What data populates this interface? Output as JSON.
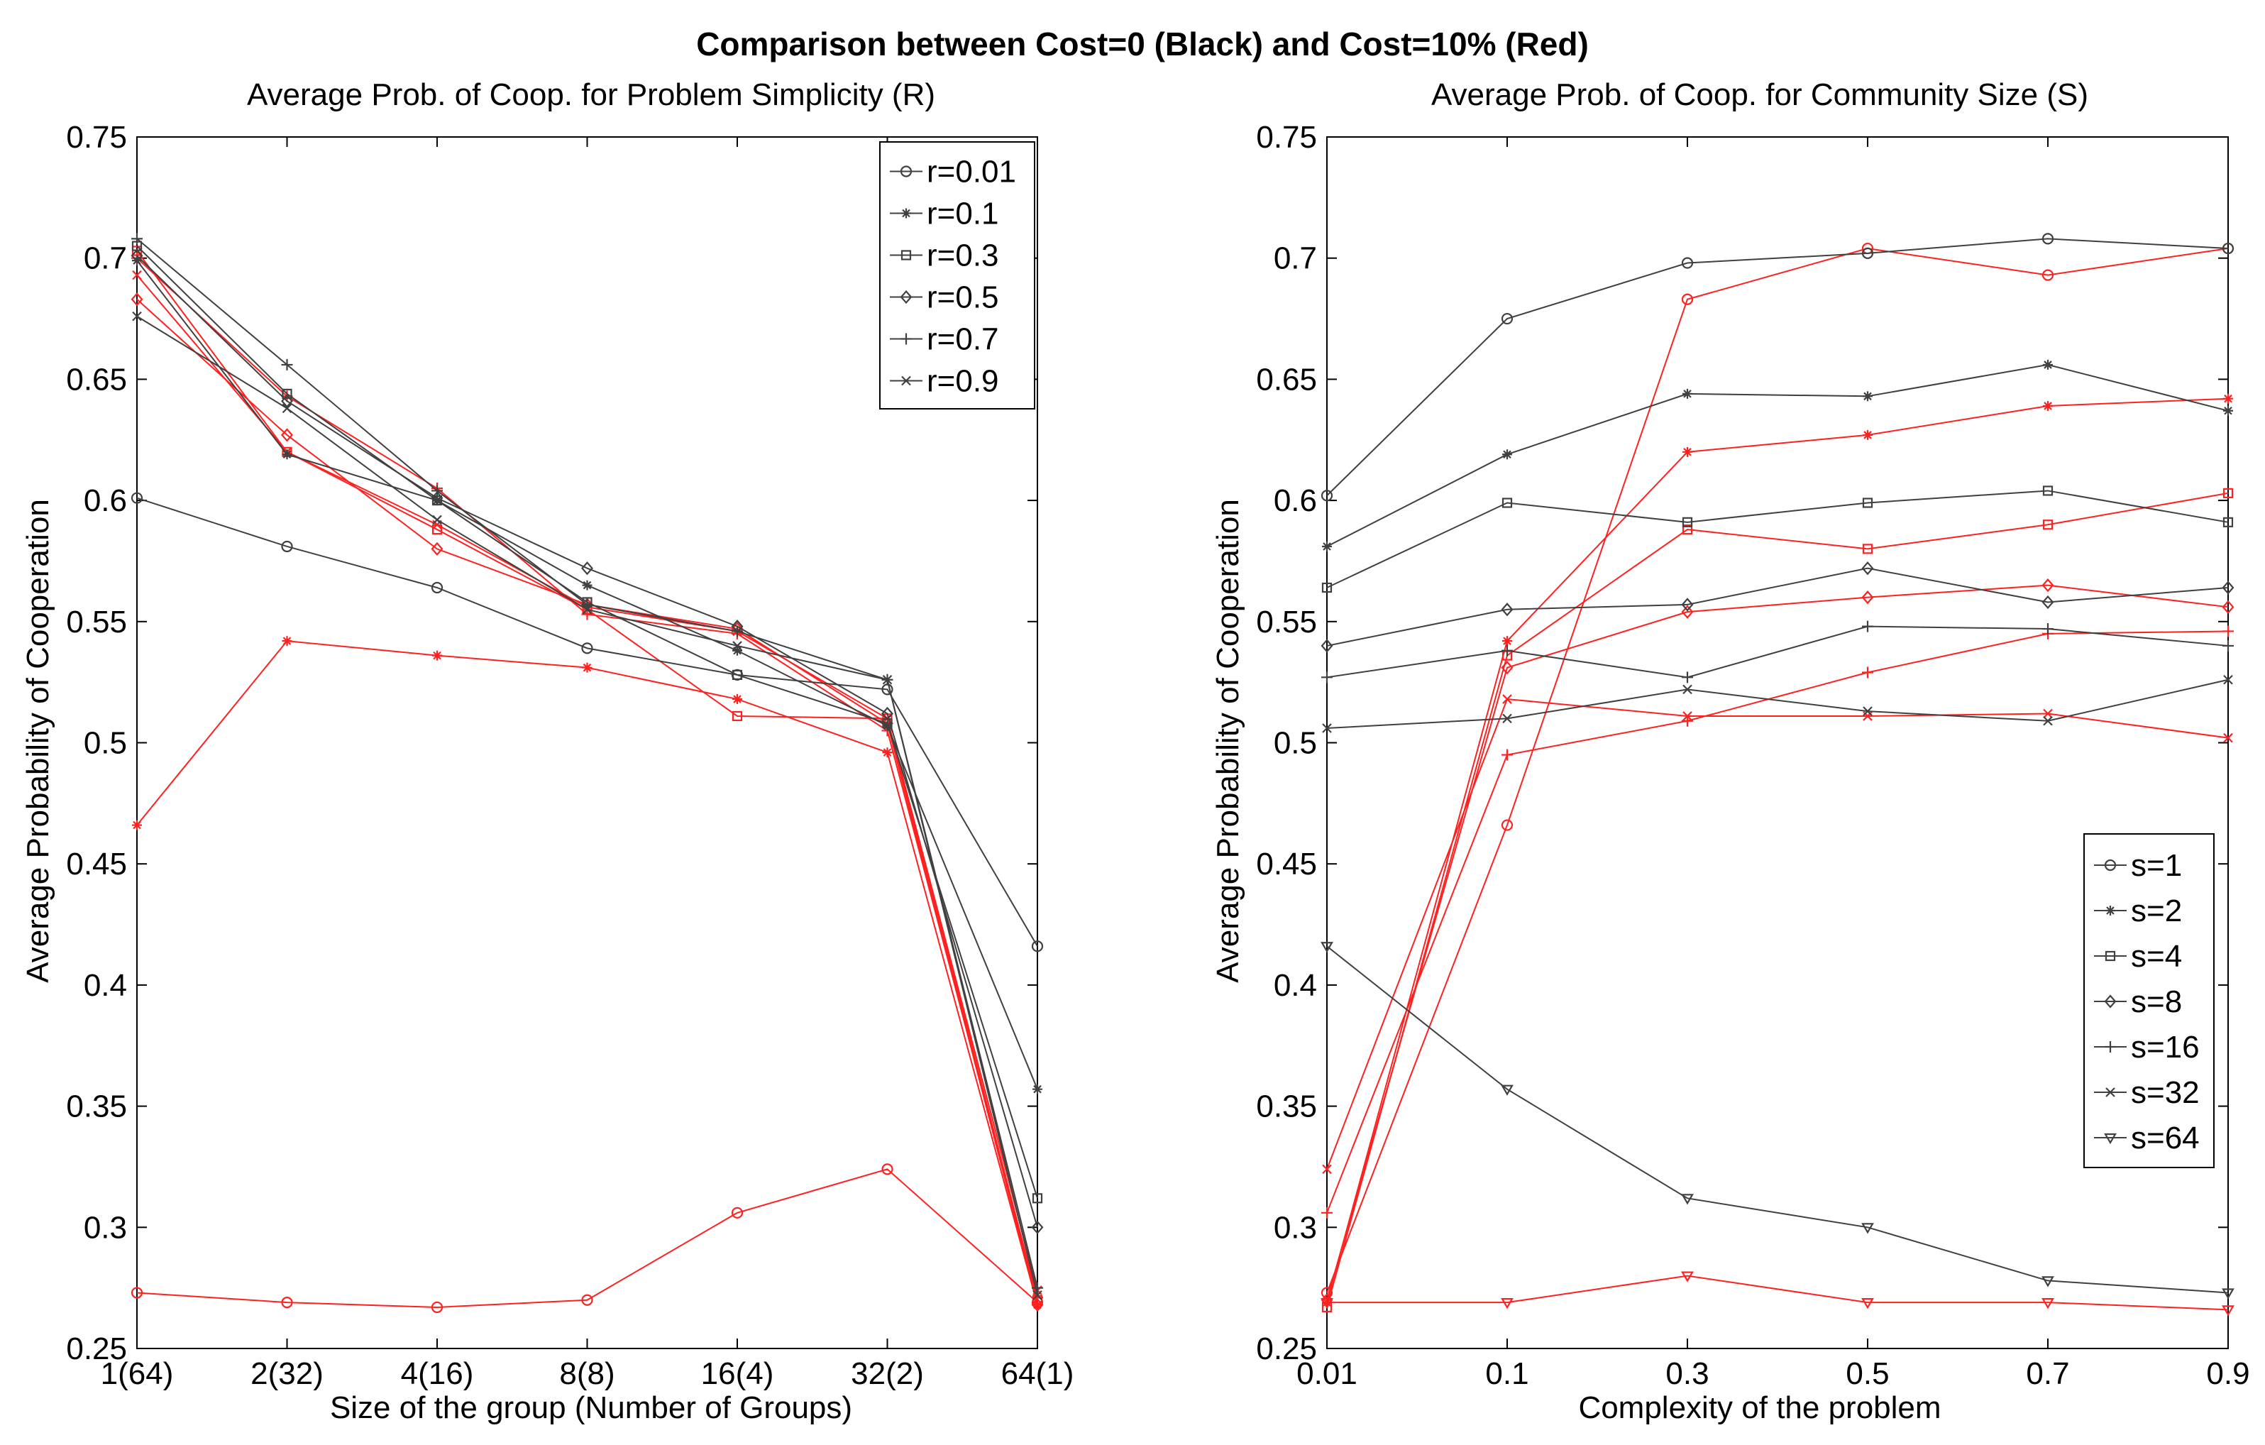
{
  "figure_title": "Comparison between Cost=0 (Black) and Cost=10% (Red)",
  "colors": {
    "black_series": "#404040",
    "red_series": "#ff2020",
    "axes": "#000000",
    "background": "#ffffff"
  },
  "chart_data": [
    {
      "type": "line",
      "title": "Average Prob. of Coop. for Problem Simplicity (R)",
      "xlabel": "Size of the group (Number of Groups)",
      "ylabel": "Average Probability of Cooperation",
      "categories": [
        "1(64)",
        "2(32)",
        "4(16)",
        "8(8)",
        "16(4)",
        "32(2)",
        "64(1)"
      ],
      "ylim": [
        0.25,
        0.75
      ],
      "yticks": [
        "0.25",
        "0.3",
        "0.35",
        "0.4",
        "0.45",
        "0.5",
        "0.55",
        "0.6",
        "0.65",
        "0.7",
        "0.75"
      ],
      "legend_position": "top-right",
      "series": [
        {
          "name": "r=0.01",
          "marker": "circle",
          "cost": "0",
          "values": [
            0.601,
            0.581,
            0.564,
            0.539,
            0.528,
            0.522,
            0.416
          ]
        },
        {
          "name": "r=0.1",
          "marker": "star",
          "cost": "0",
          "values": [
            0.699,
            0.619,
            0.6,
            0.565,
            0.538,
            0.507,
            0.357
          ]
        },
        {
          "name": "r=0.3",
          "marker": "square",
          "cost": "0",
          "values": [
            0.705,
            0.644,
            0.6,
            0.558,
            0.528,
            0.508,
            0.312
          ]
        },
        {
          "name": "r=0.5",
          "marker": "diamond",
          "cost": "0",
          "values": [
            0.701,
            0.641,
            0.601,
            0.572,
            0.548,
            0.512,
            0.3
          ]
        },
        {
          "name": "r=0.7",
          "marker": "plus",
          "cost": "0",
          "values": [
            0.708,
            0.656,
            0.604,
            0.557,
            0.546,
            0.526,
            0.275
          ]
        },
        {
          "name": "r=0.9",
          "marker": "x",
          "cost": "0",
          "values": [
            0.676,
            0.638,
            0.592,
            0.555,
            0.54,
            0.526,
            0.272
          ]
        },
        {
          "name": "r=0.01",
          "marker": "circle",
          "cost": "10%",
          "values": [
            0.273,
            0.269,
            0.267,
            0.27,
            0.306,
            0.324,
            0.269
          ]
        },
        {
          "name": "r=0.1",
          "marker": "star",
          "cost": "10%",
          "values": [
            0.466,
            0.542,
            0.536,
            0.531,
            0.518,
            0.496,
            0.268
          ]
        },
        {
          "name": "r=0.3",
          "marker": "square",
          "cost": "10%",
          "values": [
            0.703,
            0.62,
            0.588,
            0.555,
            0.511,
            0.51,
            0.27
          ]
        },
        {
          "name": "r=0.5",
          "marker": "diamond",
          "cost": "10%",
          "values": [
            0.683,
            0.627,
            0.58,
            0.557,
            0.547,
            0.508,
            0.268
          ]
        },
        {
          "name": "r=0.7",
          "marker": "plus",
          "cost": "10%",
          "values": [
            0.7,
            0.643,
            0.605,
            0.553,
            0.545,
            0.505,
            0.271
          ]
        },
        {
          "name": "r=0.9",
          "marker": "x",
          "cost": "10%",
          "values": [
            0.693,
            0.62,
            0.59,
            0.556,
            0.546,
            0.51,
            0.274
          ]
        }
      ]
    },
    {
      "type": "line",
      "title": "Average Prob. of Coop. for Community Size (S)",
      "xlabel": "Complexity of the problem",
      "ylabel": "Average Probability of Cooperation",
      "categories": [
        "0.01",
        "0.1",
        "0.3",
        "0.5",
        "0.7",
        "0.9"
      ],
      "ylim": [
        0.25,
        0.75
      ],
      "yticks": [
        "0.25",
        "0.3",
        "0.35",
        "0.4",
        "0.45",
        "0.5",
        "0.55",
        "0.6",
        "0.65",
        "0.7",
        "0.75"
      ],
      "legend_position": "lower-right",
      "series": [
        {
          "name": "s=1",
          "marker": "circle",
          "cost": "0",
          "values": [
            0.602,
            0.675,
            0.698,
            0.702,
            0.708,
            0.704
          ]
        },
        {
          "name": "s=2",
          "marker": "star",
          "cost": "0",
          "values": [
            0.581,
            0.619,
            0.644,
            0.643,
            0.656,
            0.637
          ]
        },
        {
          "name": "s=4",
          "marker": "square",
          "cost": "0",
          "values": [
            0.564,
            0.599,
            0.591,
            0.599,
            0.604,
            0.591
          ]
        },
        {
          "name": "s=8",
          "marker": "diamond",
          "cost": "0",
          "values": [
            0.54,
            0.555,
            0.557,
            0.572,
            0.558,
            0.564
          ]
        },
        {
          "name": "s=16",
          "marker": "plus",
          "cost": "0",
          "values": [
            0.527,
            0.538,
            0.527,
            0.548,
            0.547,
            0.54
          ]
        },
        {
          "name": "s=32",
          "marker": "x",
          "cost": "0",
          "values": [
            0.506,
            0.51,
            0.522,
            0.513,
            0.509,
            0.526
          ]
        },
        {
          "name": "s=64",
          "marker": "triangle-down",
          "cost": "0",
          "values": [
            0.416,
            0.357,
            0.312,
            0.3,
            0.278,
            0.273
          ]
        },
        {
          "name": "s=1",
          "marker": "circle",
          "cost": "10%",
          "values": [
            0.273,
            0.466,
            0.683,
            0.704,
            0.693,
            0.704
          ]
        },
        {
          "name": "s=2",
          "marker": "star",
          "cost": "10%",
          "values": [
            0.269,
            0.542,
            0.62,
            0.627,
            0.639,
            0.642
          ]
        },
        {
          "name": "s=4",
          "marker": "square",
          "cost": "10%",
          "values": [
            0.267,
            0.536,
            0.588,
            0.58,
            0.59,
            0.603
          ]
        },
        {
          "name": "s=8",
          "marker": "diamond",
          "cost": "10%",
          "values": [
            0.27,
            0.531,
            0.554,
            0.56,
            0.565,
            0.556
          ]
        },
        {
          "name": "s=16",
          "marker": "plus",
          "cost": "10%",
          "values": [
            0.306,
            0.495,
            0.509,
            0.529,
            0.545,
            0.546
          ]
        },
        {
          "name": "s=32",
          "marker": "x",
          "cost": "10%",
          "values": [
            0.324,
            0.518,
            0.511,
            0.511,
            0.512,
            0.502
          ]
        },
        {
          "name": "s=64",
          "marker": "triangle-down",
          "cost": "10%",
          "values": [
            0.269,
            0.269,
            0.28,
            0.269,
            0.269,
            0.266
          ]
        }
      ]
    }
  ]
}
